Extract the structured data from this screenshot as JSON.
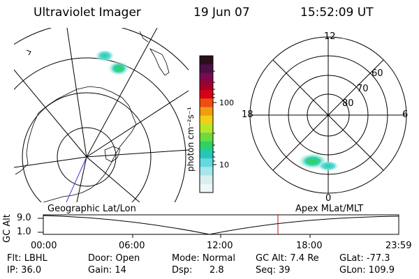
{
  "header": {
    "title": "Ultraviolet Imager",
    "date": "19 Jun 07",
    "time": "15:52:09 UT"
  },
  "colorbar": {
    "label": "photon cm⁻²s⁻¹",
    "tick_labels": [
      "100",
      "10"
    ],
    "colors": [
      "#2b0f1e",
      "#4b0f49",
      "#7a0a4d",
      "#a20026",
      "#d70018",
      "#ef4d12",
      "#f39a14",
      "#f0cf18",
      "#b8e62a",
      "#6cdb3c",
      "#2ed068",
      "#24c8b6",
      "#62d8df",
      "#a9e6ea",
      "#d6f0f2",
      "#eef7f8"
    ]
  },
  "polar_plot": {
    "mlt_labels": [
      "12",
      "18",
      "6",
      "0"
    ],
    "lat_labels": [
      "60",
      "70",
      "80"
    ]
  },
  "timeline": {
    "left_label": "Geographic Lat/Lon",
    "right_label": "Apex MLat/MLT",
    "axis_label": "GC Alt",
    "y_ticks": [
      "9.0",
      "1.0"
    ],
    "x_ticks": [
      "00:00",
      "06:00",
      "12:00",
      "18:00",
      "23:59"
    ]
  },
  "status": {
    "flt": "Flt: LBHL",
    "door": "Door: Open",
    "mode": "Mode: Normal",
    "gc_alt": "GC Alt: 7.4 Re",
    "glat": "GLat: -77.3",
    "ip": "IP: 36.0",
    "gain": "Gain: 14",
    "dsp_label": "Dsp:",
    "dsp_value": "2.8",
    "seq": "Seq: 39",
    "glon": "GLon: 109.9"
  }
}
